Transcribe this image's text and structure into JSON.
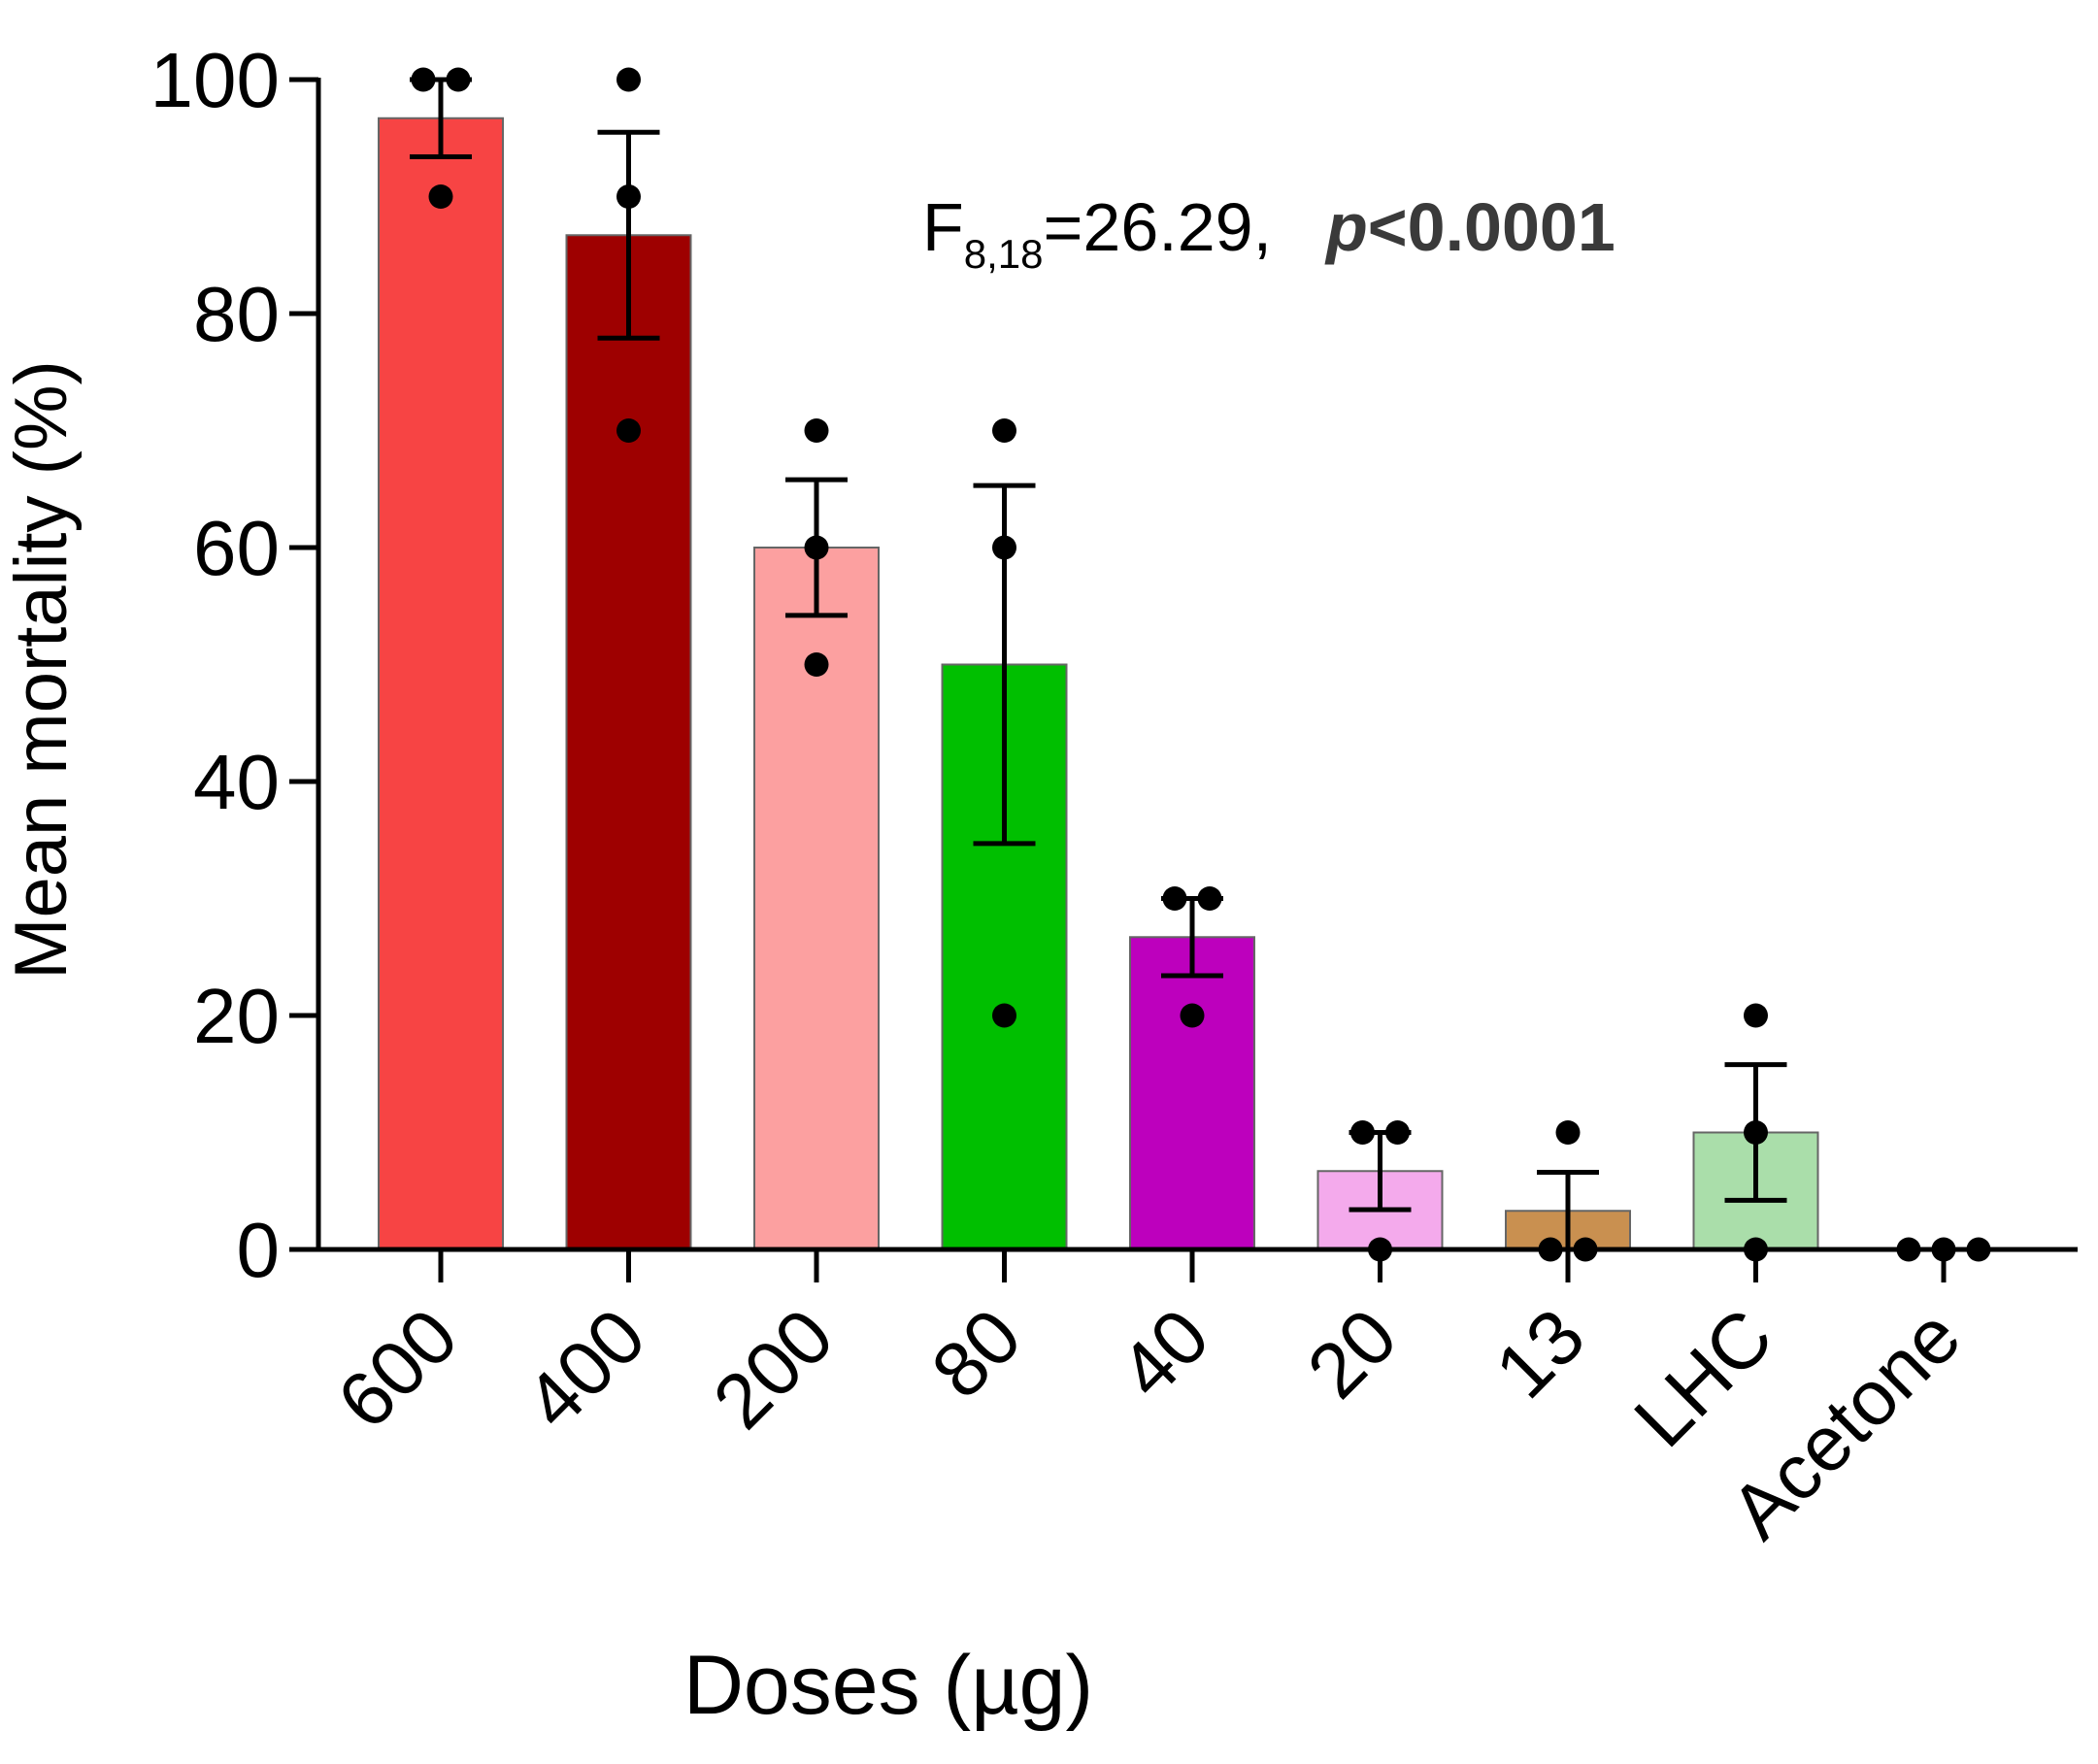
{
  "chart_data": {
    "type": "bar",
    "title": "",
    "xlabel": "Doses (µg)",
    "ylabel": "Mean mortality (%)",
    "ylim": [
      0,
      100
    ],
    "yticks": [
      0,
      20,
      40,
      60,
      80,
      100
    ],
    "categories": [
      "600",
      "400",
      "200",
      "80",
      "40",
      "20",
      "13",
      "LHC",
      "Acetone"
    ],
    "values": [
      96.7,
      86.7,
      60.0,
      50.0,
      26.7,
      6.7,
      3.3,
      10.0,
      0.0
    ],
    "sem": [
      3.3,
      8.8,
      5.8,
      15.3,
      3.3,
      3.3,
      3.3,
      5.8,
      0.0
    ],
    "points": [
      [
        100,
        100,
        90
      ],
      [
        100,
        90,
        70
      ],
      [
        70,
        60,
        50
      ],
      [
        70,
        60,
        20
      ],
      [
        30,
        30,
        20
      ],
      [
        10,
        10,
        0
      ],
      [
        10,
        0,
        0
      ],
      [
        20,
        10,
        0
      ],
      [
        0,
        0,
        0
      ]
    ],
    "colors": [
      "#f74444",
      "#9e0000",
      "#fca0a0",
      "#00bf00",
      "#bd00bd",
      "#f4aaec",
      "#c99050",
      "#aadeaa",
      "#ffffff"
    ],
    "annotation": {
      "f_main": "F",
      "f_sub": "8,18",
      "f_value": "=26.29,",
      "p_italic": "p",
      "p_value": "<0.0001"
    }
  }
}
